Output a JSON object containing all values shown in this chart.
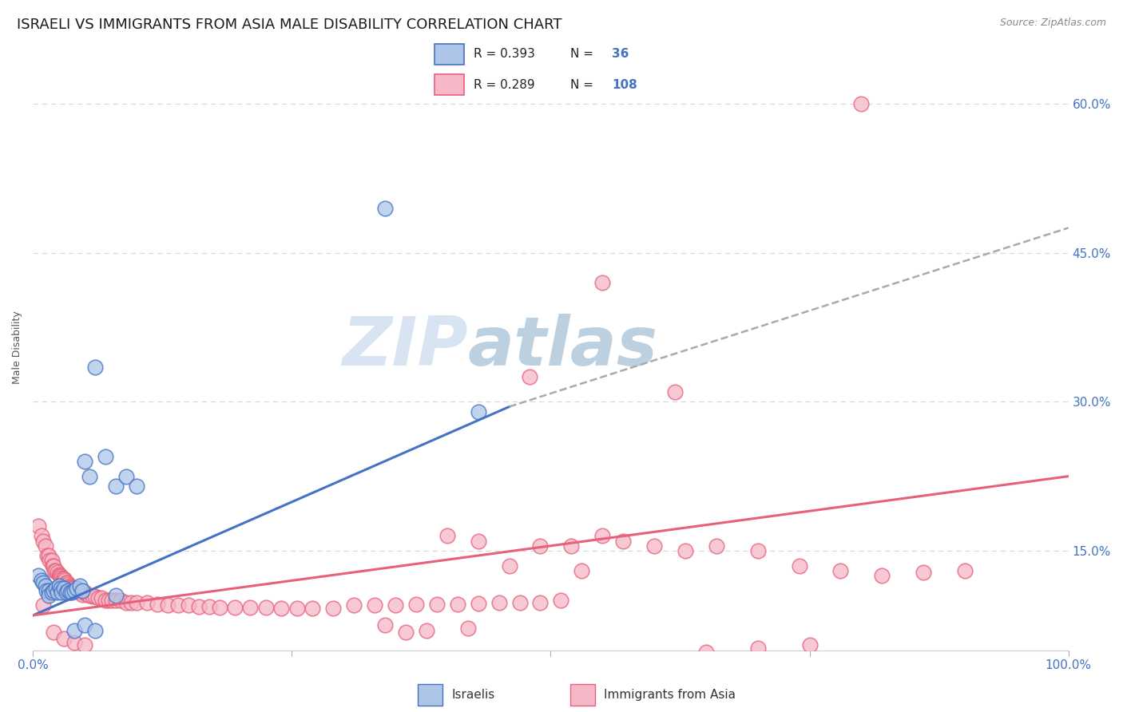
{
  "title": "ISRAELI VS IMMIGRANTS FROM ASIA MALE DISABILITY CORRELATION CHART",
  "source": "Source: ZipAtlas.com",
  "ylabel": "Male Disability",
  "color_israeli": "#adc6e8",
  "color_immigrant": "#f5b8c8",
  "color_line_israeli": "#4472c4",
  "color_line_immigrant": "#e8607a",
  "color_dashed": "#aaaaaa",
  "watermark_text": "ZIP",
  "watermark_text2": "atlas",
  "watermark_color": "#c5d8ec",
  "watermark_color2": "#b0c8e0",
  "background_color": "#ffffff",
  "grid_color": "#d8d8d8",
  "title_fontsize": 13,
  "axis_label_fontsize": 9,
  "tick_fontsize": 11,
  "xlim": [
    0.0,
    1.0
  ],
  "ylim": [
    0.05,
    0.66
  ],
  "yticks": [
    0.15,
    0.3,
    0.45,
    0.6
  ],
  "ytick_labels": [
    "15.0%",
    "30.0%",
    "45.0%",
    "60.0%"
  ],
  "israeli_line_x": [
    0.0,
    0.46
  ],
  "israeli_line_y": [
    0.085,
    0.295
  ],
  "dashed_line_x": [
    0.46,
    1.0
  ],
  "dashed_line_y": [
    0.295,
    0.475
  ],
  "immigrant_line_x": [
    0.0,
    1.0
  ],
  "immigrant_line_y": [
    0.085,
    0.225
  ],
  "isr_x": [
    0.005,
    0.008,
    0.01,
    0.012,
    0.013,
    0.015,
    0.015,
    0.018,
    0.02,
    0.022,
    0.024,
    0.025,
    0.027,
    0.028,
    0.03,
    0.032,
    0.034,
    0.036,
    0.038,
    0.04,
    0.042,
    0.045,
    0.048,
    0.05,
    0.055,
    0.06,
    0.07,
    0.08,
    0.09,
    0.1,
    0.04,
    0.05,
    0.06,
    0.34,
    0.43,
    0.08
  ],
  "isr_y": [
    0.125,
    0.12,
    0.118,
    0.115,
    0.11,
    0.11,
    0.105,
    0.108,
    0.11,
    0.112,
    0.108,
    0.115,
    0.112,
    0.108,
    0.112,
    0.108,
    0.11,
    0.108,
    0.108,
    0.11,
    0.112,
    0.115,
    0.11,
    0.24,
    0.225,
    0.335,
    0.245,
    0.215,
    0.225,
    0.215,
    0.07,
    0.075,
    0.07,
    0.495,
    0.29,
    0.105
  ],
  "imm_x": [
    0.005,
    0.008,
    0.01,
    0.012,
    0.014,
    0.015,
    0.016,
    0.018,
    0.019,
    0.02,
    0.021,
    0.022,
    0.024,
    0.025,
    0.026,
    0.027,
    0.028,
    0.029,
    0.03,
    0.031,
    0.032,
    0.033,
    0.034,
    0.035,
    0.036,
    0.037,
    0.038,
    0.039,
    0.04,
    0.042,
    0.044,
    0.045,
    0.046,
    0.048,
    0.05,
    0.052,
    0.055,
    0.058,
    0.06,
    0.063,
    0.066,
    0.07,
    0.073,
    0.076,
    0.08,
    0.085,
    0.09,
    0.095,
    0.1,
    0.11,
    0.12,
    0.13,
    0.14,
    0.15,
    0.16,
    0.17,
    0.18,
    0.195,
    0.21,
    0.225,
    0.24,
    0.255,
    0.27,
    0.29,
    0.31,
    0.33,
    0.35,
    0.37,
    0.39,
    0.41,
    0.43,
    0.45,
    0.47,
    0.49,
    0.51,
    0.53,
    0.55,
    0.57,
    0.6,
    0.63,
    0.66,
    0.7,
    0.74,
    0.78,
    0.82,
    0.86,
    0.9,
    0.01,
    0.02,
    0.03,
    0.04,
    0.05,
    0.55,
    0.62,
    0.48,
    0.52,
    0.46,
    0.49,
    0.4,
    0.43,
    0.38,
    0.34,
    0.36,
    0.42,
    0.65,
    0.7,
    0.75,
    0.8
  ],
  "imm_y": [
    0.175,
    0.165,
    0.16,
    0.155,
    0.145,
    0.145,
    0.14,
    0.14,
    0.135,
    0.135,
    0.13,
    0.13,
    0.128,
    0.126,
    0.125,
    0.124,
    0.123,
    0.122,
    0.122,
    0.12,
    0.118,
    0.118,
    0.116,
    0.115,
    0.114,
    0.113,
    0.112,
    0.112,
    0.11,
    0.11,
    0.11,
    0.108,
    0.108,
    0.106,
    0.108,
    0.106,
    0.105,
    0.104,
    0.104,
    0.103,
    0.103,
    0.1,
    0.1,
    0.1,
    0.1,
    0.1,
    0.098,
    0.098,
    0.098,
    0.098,
    0.096,
    0.095,
    0.095,
    0.095,
    0.094,
    0.094,
    0.093,
    0.093,
    0.093,
    0.093,
    0.092,
    0.092,
    0.092,
    0.092,
    0.095,
    0.095,
    0.095,
    0.096,
    0.096,
    0.096,
    0.097,
    0.098,
    0.098,
    0.098,
    0.1,
    0.13,
    0.165,
    0.16,
    0.155,
    0.15,
    0.155,
    0.15,
    0.135,
    0.13,
    0.125,
    0.128,
    0.13,
    0.095,
    0.068,
    0.062,
    0.058,
    0.055,
    0.42,
    0.31,
    0.325,
    0.155,
    0.135,
    0.155,
    0.165,
    0.16,
    0.07,
    0.075,
    0.068,
    0.072,
    0.048,
    0.052,
    0.055,
    0.6
  ]
}
